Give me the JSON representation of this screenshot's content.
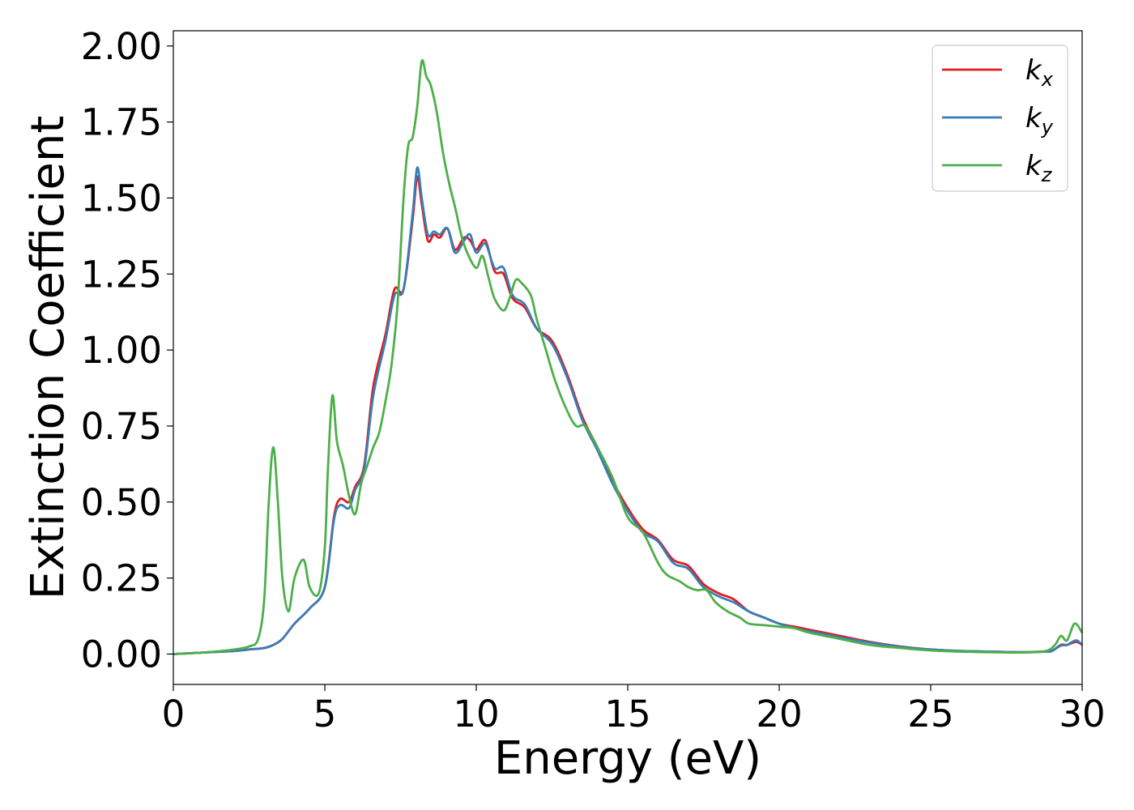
{
  "chart_data": {
    "type": "line",
    "title": "",
    "xlabel": "Energy (eV)",
    "ylabel": "Extinction Coefficient",
    "xlim": [
      0,
      30
    ],
    "ylim": [
      -0.1,
      2.05
    ],
    "x_ticks": [
      0,
      5,
      10,
      15,
      20,
      25,
      30
    ],
    "x_tick_labels": [
      "0",
      "5",
      "10",
      "15",
      "20",
      "25",
      "30"
    ],
    "y_ticks": [
      0,
      0.25,
      0.5,
      0.75,
      1.0,
      1.25,
      1.5,
      1.75,
      2.0
    ],
    "y_tick_labels": [
      "0.00",
      "0.25",
      "0.50",
      "0.75",
      "1.00",
      "1.25",
      "1.50",
      "1.75",
      "2.00"
    ],
    "grid": false,
    "legend_position": "top-right",
    "series": [
      {
        "legend_base": "k",
        "legend_sub": "x",
        "color": "#e41a1c",
        "x": [
          0,
          1,
          2,
          2.5,
          3,
          3.3,
          3.6,
          4.0,
          4.5,
          5.0,
          5.3,
          5.5,
          5.8,
          6.0,
          6.3,
          6.6,
          7.0,
          7.3,
          7.6,
          7.9,
          8.05,
          8.2,
          8.4,
          8.6,
          8.8,
          9.05,
          9.3,
          9.6,
          9.8,
          10.0,
          10.3,
          10.6,
          10.9,
          11.2,
          11.6,
          12.0,
          12.5,
          13.0,
          13.5,
          14.0,
          14.5,
          15.0,
          15.5,
          16.0,
          16.5,
          17.0,
          17.5,
          18.0,
          18.5,
          19.0,
          19.5,
          20.0,
          20.5,
          21,
          22,
          23,
          24,
          25,
          26,
          27,
          28,
          28.8,
          29.0,
          29.3,
          29.5,
          29.8,
          30.0
        ],
        "y": [
          0.0,
          0.005,
          0.01,
          0.015,
          0.02,
          0.03,
          0.05,
          0.1,
          0.15,
          0.22,
          0.45,
          0.51,
          0.5,
          0.55,
          0.62,
          0.88,
          1.05,
          1.2,
          1.2,
          1.43,
          1.57,
          1.48,
          1.36,
          1.38,
          1.37,
          1.4,
          1.33,
          1.37,
          1.36,
          1.33,
          1.36,
          1.26,
          1.25,
          1.17,
          1.14,
          1.07,
          1.03,
          0.92,
          0.78,
          0.68,
          0.57,
          0.48,
          0.41,
          0.375,
          0.31,
          0.29,
          0.23,
          0.2,
          0.18,
          0.14,
          0.12,
          0.1,
          0.09,
          0.08,
          0.06,
          0.04,
          0.025,
          0.015,
          0.01,
          0.008,
          0.006,
          0.008,
          0.01,
          0.03,
          0.03,
          0.04,
          0.03
        ]
      },
      {
        "legend_base": "k",
        "legend_sub": "y",
        "color": "#377eb8",
        "x": [
          0,
          1,
          2,
          2.5,
          3,
          3.3,
          3.6,
          4.0,
          4.5,
          5.0,
          5.3,
          5.5,
          5.8,
          6.0,
          6.3,
          6.6,
          7.0,
          7.3,
          7.6,
          7.9,
          8.05,
          8.2,
          8.4,
          8.6,
          8.8,
          9.05,
          9.3,
          9.6,
          9.8,
          10.0,
          10.3,
          10.6,
          10.9,
          11.2,
          11.6,
          12.0,
          12.5,
          13.0,
          13.5,
          14.0,
          14.5,
          15.0,
          15.5,
          16.0,
          16.5,
          17.0,
          17.5,
          18.0,
          18.5,
          19.0,
          19.5,
          20.0,
          20.5,
          21,
          22,
          23,
          24,
          25,
          26,
          27,
          28,
          28.8,
          29.0,
          29.3,
          29.5,
          29.8,
          30.0
        ],
        "y": [
          0.0,
          0.005,
          0.01,
          0.015,
          0.02,
          0.03,
          0.05,
          0.1,
          0.15,
          0.22,
          0.44,
          0.49,
          0.48,
          0.54,
          0.61,
          0.85,
          1.03,
          1.18,
          1.2,
          1.45,
          1.6,
          1.5,
          1.38,
          1.39,
          1.38,
          1.4,
          1.32,
          1.36,
          1.38,
          1.32,
          1.35,
          1.27,
          1.27,
          1.18,
          1.15,
          1.07,
          1.02,
          0.91,
          0.77,
          0.67,
          0.56,
          0.47,
          0.4,
          0.37,
          0.3,
          0.28,
          0.22,
          0.19,
          0.17,
          0.14,
          0.12,
          0.1,
          0.085,
          0.075,
          0.055,
          0.038,
          0.024,
          0.015,
          0.01,
          0.008,
          0.006,
          0.008,
          0.01,
          0.028,
          0.03,
          0.045,
          0.03
        ]
      },
      {
        "legend_base": "k",
        "legend_sub": "z",
        "color": "#4daf4a",
        "x": [
          0,
          1,
          2,
          2.5,
          2.8,
          3.0,
          3.15,
          3.3,
          3.45,
          3.6,
          3.8,
          4.0,
          4.3,
          4.5,
          4.8,
          5.0,
          5.1,
          5.25,
          5.4,
          5.6,
          5.8,
          6.0,
          6.2,
          6.4,
          6.6,
          6.8,
          7.0,
          7.2,
          7.4,
          7.6,
          7.75,
          7.9,
          8.05,
          8.2,
          8.35,
          8.5,
          8.7,
          8.9,
          9.1,
          9.3,
          9.5,
          9.7,
          10.0,
          10.2,
          10.4,
          10.6,
          10.9,
          11.1,
          11.3,
          11.5,
          11.8,
          12.0,
          12.3,
          12.6,
          13.0,
          13.3,
          13.6,
          14.0,
          14.5,
          15.0,
          15.5,
          16.0,
          16.3,
          16.7,
          17.0,
          17.3,
          17.6,
          17.9,
          18.3,
          18.7,
          19.0,
          19.5,
          20.0,
          20.5,
          21,
          22,
          23,
          24,
          25,
          26,
          27,
          28,
          28.8,
          29.1,
          29.3,
          29.5,
          29.75,
          30.0
        ],
        "y": [
          0.0,
          0.005,
          0.015,
          0.025,
          0.05,
          0.18,
          0.5,
          0.68,
          0.5,
          0.25,
          0.14,
          0.25,
          0.31,
          0.22,
          0.2,
          0.35,
          0.6,
          0.85,
          0.7,
          0.62,
          0.52,
          0.46,
          0.56,
          0.62,
          0.68,
          0.73,
          0.83,
          0.95,
          1.15,
          1.5,
          1.67,
          1.7,
          1.8,
          1.95,
          1.9,
          1.87,
          1.78,
          1.65,
          1.55,
          1.47,
          1.38,
          1.32,
          1.27,
          1.31,
          1.24,
          1.17,
          1.13,
          1.17,
          1.23,
          1.22,
          1.18,
          1.1,
          1.0,
          0.9,
          0.8,
          0.75,
          0.75,
          0.68,
          0.58,
          0.45,
          0.4,
          0.3,
          0.26,
          0.24,
          0.22,
          0.21,
          0.21,
          0.17,
          0.14,
          0.12,
          0.1,
          0.095,
          0.09,
          0.085,
          0.07,
          0.05,
          0.03,
          0.02,
          0.012,
          0.008,
          0.006,
          0.005,
          0.01,
          0.03,
          0.06,
          0.045,
          0.1,
          0.07
        ]
      }
    ]
  }
}
